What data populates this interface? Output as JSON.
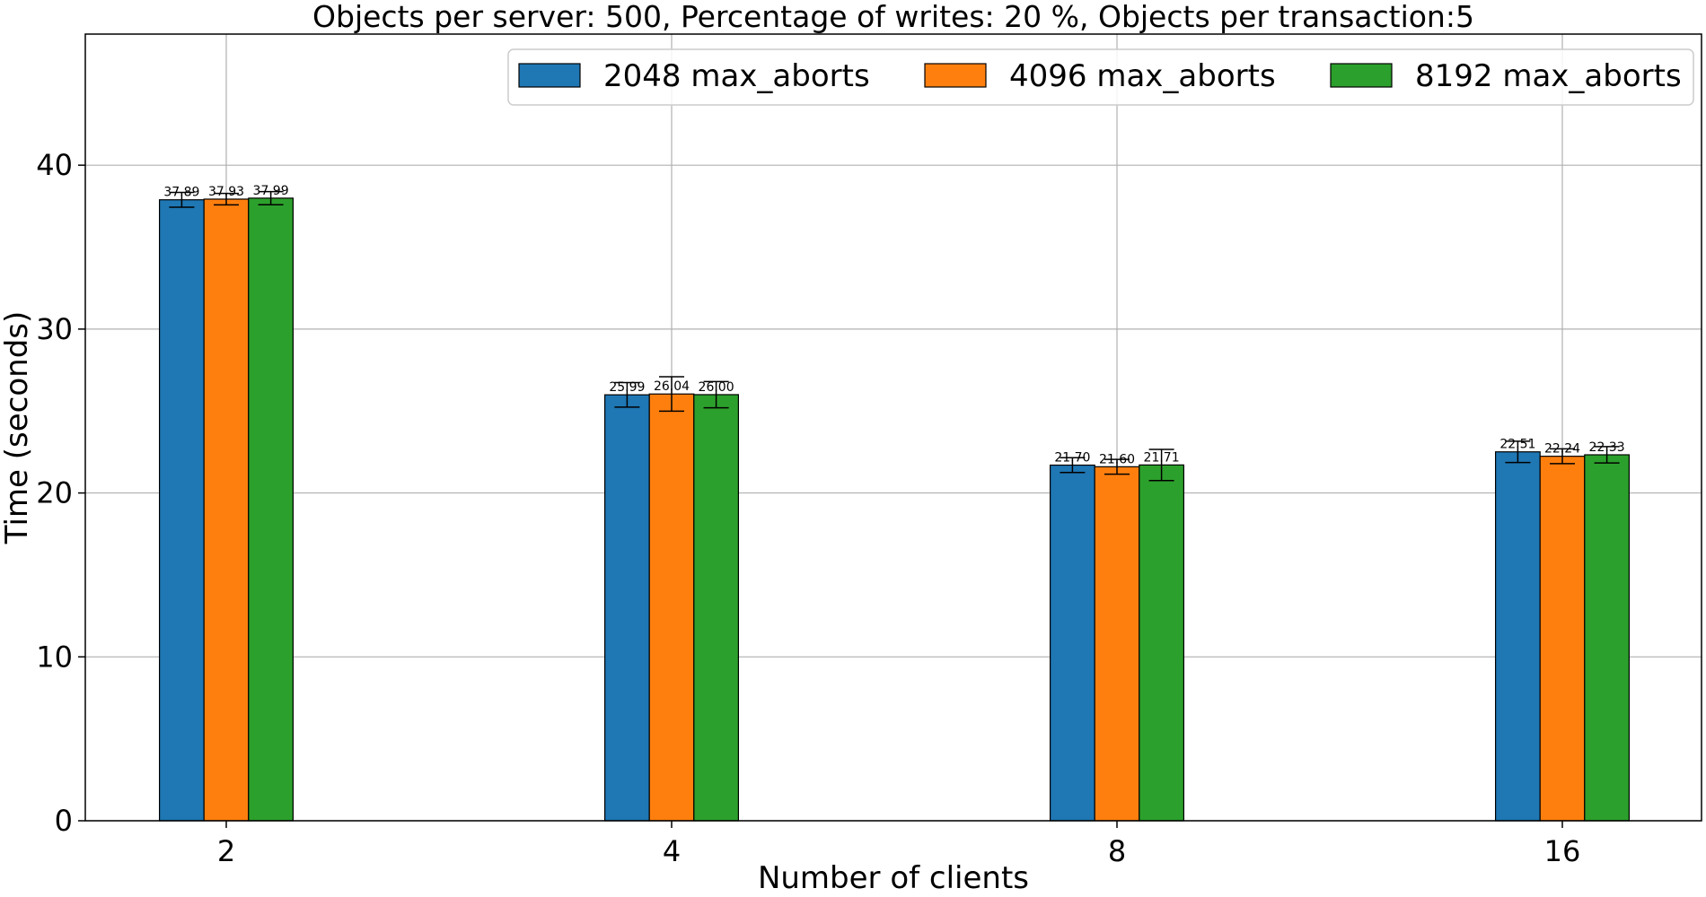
{
  "chart_data": {
    "type": "bar",
    "title": "Objects per server: 500, Percentage of writes: 20 %, Objects per transaction:5",
    "xlabel": "Number of clients",
    "ylabel": "Time (seconds)",
    "categories": [
      "2",
      "4",
      "8",
      "16"
    ],
    "ylim": [
      0,
      48
    ],
    "yticks": [
      0,
      10,
      20,
      30,
      40
    ],
    "grid": true,
    "legend_position": "top-right",
    "series": [
      {
        "name": "2048 max_aborts",
        "color": "#1f77b4",
        "values": [
          37.89,
          25.99,
          21.7,
          22.51
        ],
        "value_labels": [
          "37.89",
          "25.99",
          "21.70",
          "22.51"
        ],
        "errors": [
          0.45,
          0.75,
          0.45,
          0.65
        ]
      },
      {
        "name": "4096 max_aborts",
        "color": "#ff7f0e",
        "values": [
          37.93,
          26.04,
          21.6,
          22.24
        ],
        "value_labels": [
          "37.93",
          "26.04",
          "21.60",
          "22.24"
        ],
        "errors": [
          0.35,
          1.05,
          0.45,
          0.45
        ]
      },
      {
        "name": "8192 max_aborts",
        "color": "#2ca02c",
        "values": [
          37.99,
          26.0,
          21.71,
          22.33
        ],
        "value_labels": [
          "37.99",
          "26.00",
          "21.71",
          "22.33"
        ],
        "errors": [
          0.4,
          0.8,
          0.95,
          0.5
        ]
      }
    ]
  }
}
